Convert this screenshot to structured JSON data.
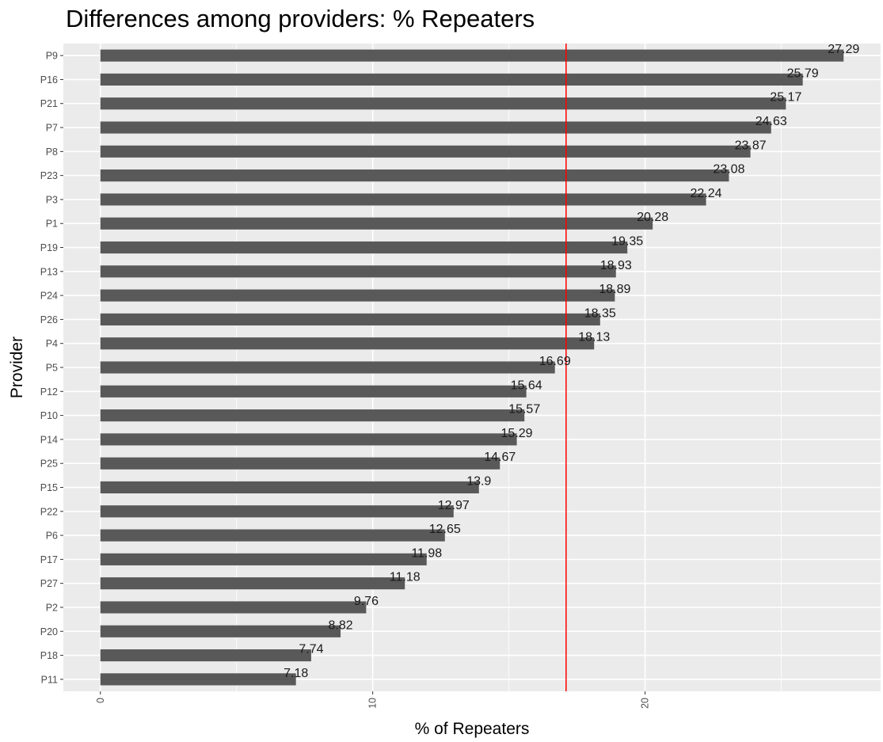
{
  "chart_data": {
    "type": "bar",
    "orientation": "horizontal",
    "title": "Differences among providers: % Repeaters",
    "xlabel": "% of Repeaters",
    "ylabel": "Provider",
    "categories": [
      "P9",
      "P16",
      "P21",
      "P7",
      "P8",
      "P23",
      "P3",
      "P1",
      "P19",
      "P13",
      "P24",
      "P26",
      "P4",
      "P5",
      "P12",
      "P10",
      "P14",
      "P25",
      "P15",
      "P22",
      "P6",
      "P17",
      "P27",
      "P2",
      "P20",
      "P18",
      "P11"
    ],
    "values": [
      27.29,
      25.79,
      25.17,
      24.63,
      23.87,
      23.08,
      22.24,
      20.28,
      19.35,
      18.93,
      18.89,
      18.35,
      18.13,
      16.69,
      15.64,
      15.57,
      15.29,
      14.67,
      13.9,
      12.97,
      12.65,
      11.98,
      11.18,
      9.76,
      8.82,
      7.74,
      7.18
    ],
    "labels": [
      "27.29",
      "25.79",
      "25.17",
      "24.63",
      "23.87",
      "23.08",
      "22.24",
      "20.28",
      "19.35",
      "18.93",
      "18.89",
      "18.35",
      "18.13",
      "16.69",
      "15.64",
      "15.57",
      "15.29",
      "14.67",
      "13.9",
      "12.97",
      "12.65",
      "11.98",
      "11.18",
      "9.76",
      "8.82",
      "7.74",
      "7.18"
    ],
    "x_ticks": [
      0,
      10,
      20
    ],
    "x_tick_labels": [
      "0",
      "10",
      "20"
    ],
    "reference_line": {
      "value": 17.1,
      "color": "#ff0000"
    },
    "xlim": [
      -1.36,
      28.65
    ],
    "grid": true,
    "bar_color": "#595959",
    "panel_color": "#ebebeb"
  }
}
